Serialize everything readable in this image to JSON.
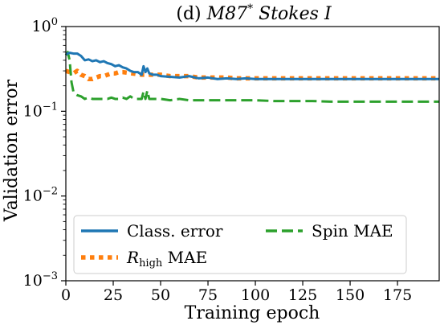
{
  "chart_data": {
    "type": "line",
    "title": "(d) M87* Stokes I",
    "title_parts": {
      "prefix": "(d) ",
      "object": "M87",
      "star": "*",
      "middle": " Stokes ",
      "param": "I"
    },
    "xlabel": "Training epoch",
    "ylabel": "Validation error",
    "xlim": [
      0,
      197
    ],
    "ylim": [
      0.001,
      1.0
    ],
    "yscale": "log",
    "grid": false,
    "legend_position": "lower-left",
    "x_ticks": [
      0,
      25,
      50,
      75,
      100,
      125,
      150,
      175
    ],
    "x_tick_labels": [
      "0",
      "25",
      "50",
      "75",
      "100",
      "125",
      "150",
      "175"
    ],
    "y_ticks": [
      0.001,
      0.01,
      0.1,
      1.0
    ],
    "y_tick_labels": [
      {
        "base": "10",
        "exp": "−3"
      },
      {
        "base": "10",
        "exp": "−2"
      },
      {
        "base": "10",
        "exp": "−1"
      },
      {
        "base": "10",
        "exp": "0"
      }
    ],
    "series": [
      {
        "name": "Class. error",
        "color": "#1f77b4",
        "dash": "solid",
        "x": [
          0,
          2,
          4,
          6,
          8,
          10,
          12,
          14,
          16,
          18,
          20,
          22,
          24,
          26,
          28,
          30,
          32,
          34,
          36,
          38,
          40,
          41,
          42,
          43,
          44,
          46,
          48,
          50,
          55,
          60,
          65,
          70,
          75,
          80,
          85,
          90,
          95,
          100,
          110,
          120,
          130,
          140,
          150,
          160,
          170,
          180,
          190,
          197
        ],
        "y": [
          0.47,
          0.49,
          0.48,
          0.48,
          0.45,
          0.4,
          0.41,
          0.39,
          0.4,
          0.38,
          0.39,
          0.37,
          0.36,
          0.34,
          0.35,
          0.33,
          0.32,
          0.3,
          0.29,
          0.29,
          0.27,
          0.34,
          0.29,
          0.32,
          0.28,
          0.27,
          0.27,
          0.26,
          0.255,
          0.25,
          0.26,
          0.245,
          0.25,
          0.24,
          0.245,
          0.24,
          0.245,
          0.24,
          0.24,
          0.24,
          0.24,
          0.24,
          0.24,
          0.24,
          0.24,
          0.24,
          0.24,
          0.24
        ]
      },
      {
        "name": "R_high MAE",
        "name_parts": {
          "symbol": "R",
          "sub": "high",
          "suffix": " MAE"
        },
        "color": "#ff7f0e",
        "dash": "dotted",
        "x": [
          0,
          2,
          4,
          6,
          8,
          10,
          12,
          14,
          16,
          18,
          20,
          22,
          24,
          26,
          28,
          30,
          35,
          40,
          45,
          50,
          55,
          60,
          65,
          70,
          75,
          80,
          85,
          90,
          95,
          100,
          110,
          120,
          130,
          140,
          150,
          160,
          170,
          180,
          190,
          197
        ],
        "y": [
          0.3,
          0.29,
          0.28,
          0.3,
          0.27,
          0.26,
          0.24,
          0.24,
          0.25,
          0.26,
          0.26,
          0.27,
          0.28,
          0.28,
          0.29,
          0.29,
          0.28,
          0.27,
          0.27,
          0.27,
          0.26,
          0.26,
          0.26,
          0.25,
          0.25,
          0.25,
          0.25,
          0.245,
          0.245,
          0.245,
          0.245,
          0.245,
          0.245,
          0.245,
          0.245,
          0.245,
          0.245,
          0.245,
          0.245,
          0.245
        ]
      },
      {
        "name": "Spin MAE",
        "color": "#2ca02c",
        "dash": "dashed",
        "x": [
          0,
          1,
          2,
          3,
          4,
          5,
          6,
          8,
          10,
          12,
          14,
          16,
          18,
          20,
          22,
          24,
          26,
          28,
          30,
          32,
          34,
          36,
          38,
          40,
          41,
          42,
          43,
          44,
          46,
          48,
          50,
          55,
          60,
          65,
          70,
          75,
          80,
          90,
          100,
          110,
          120,
          130,
          140,
          150,
          160,
          170,
          180,
          190,
          197
        ],
        "y": [
          0.46,
          0.5,
          0.4,
          0.22,
          0.17,
          0.16,
          0.155,
          0.15,
          0.14,
          0.145,
          0.14,
          0.14,
          0.14,
          0.14,
          0.14,
          0.145,
          0.14,
          0.14,
          0.145,
          0.14,
          0.15,
          0.14,
          0.14,
          0.14,
          0.17,
          0.14,
          0.175,
          0.14,
          0.14,
          0.14,
          0.14,
          0.135,
          0.14,
          0.135,
          0.135,
          0.135,
          0.135,
          0.135,
          0.135,
          0.132,
          0.132,
          0.132,
          0.13,
          0.13,
          0.13,
          0.13,
          0.13,
          0.13,
          0.13
        ]
      }
    ]
  }
}
